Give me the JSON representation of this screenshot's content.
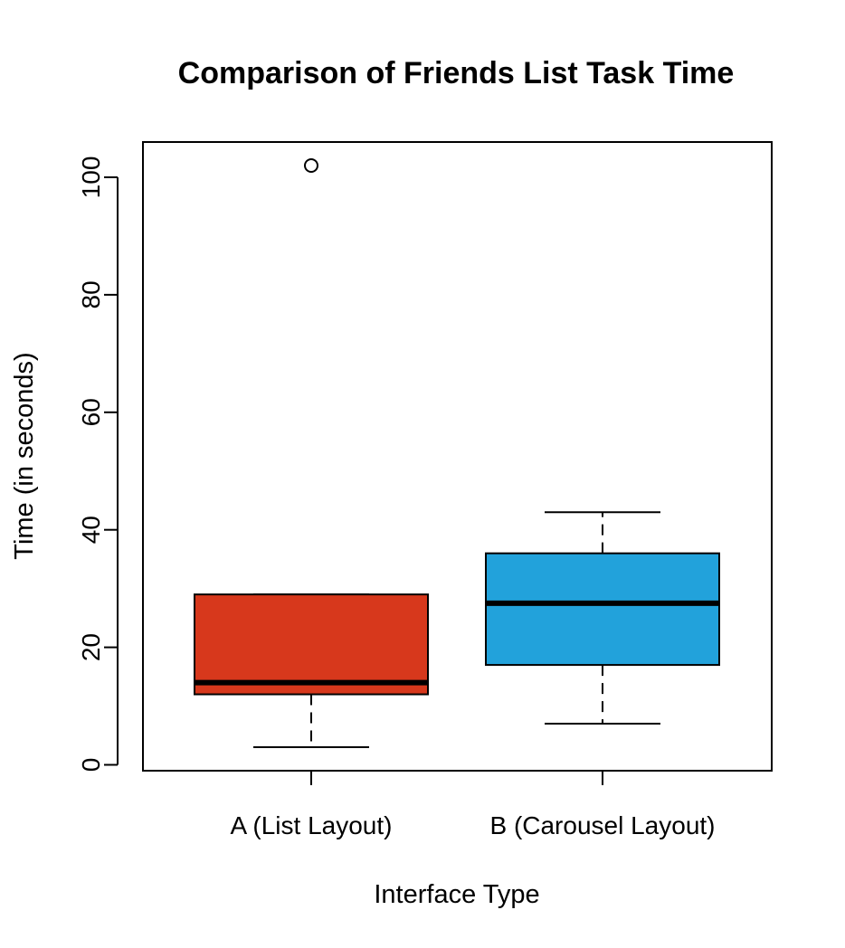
{
  "chart_data": {
    "type": "boxplot",
    "title": "Comparison of Friends List Task Time",
    "xlabel": "Interface Type",
    "ylabel": "Time (in seconds)",
    "ylim": [
      -1,
      106
    ],
    "yticks": [
      0,
      20,
      40,
      60,
      80,
      100
    ],
    "grid": false,
    "categories": [
      "A (List Layout)",
      "B (Carousel Layout)"
    ],
    "boxes": [
      {
        "category": "A (List Layout)",
        "color": "#D7381C",
        "whisker_low": 3,
        "q1": 12,
        "median": 14,
        "q3": 29,
        "whisker_high": 29,
        "outliers": [
          102
        ]
      },
      {
        "category": "B (Carousel Layout)",
        "color": "#22A2DB",
        "whisker_low": 7,
        "q1": 17,
        "median": 27.5,
        "q3": 36,
        "whisker_high": 43,
        "outliers": []
      }
    ]
  }
}
